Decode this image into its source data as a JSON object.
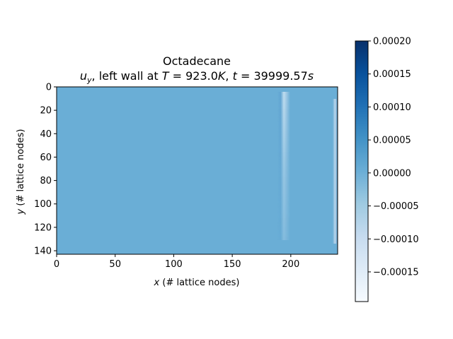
{
  "chart_data": {
    "type": "heatmap",
    "title": "Octadecane",
    "subtitle": {
      "var_base": "u",
      "var_sub": "y",
      "mid": ", left wall at ",
      "T_sym": "T",
      "T_eq": " = 923.0",
      "T_unit": "K",
      "sep": ", ",
      "t_sym": "t",
      "t_eq": " = 39999.57",
      "t_unit": "s"
    },
    "xlabel": {
      "var": "x",
      "rest": " (# lattice nodes)"
    },
    "ylabel": {
      "var": "y",
      "rest": " (# lattice nodes)"
    },
    "xlim": [
      0,
      240
    ],
    "ylim": [
      0,
      143
    ],
    "y_inverted": true,
    "x_ticks": [
      "0",
      "50",
      "100",
      "150",
      "200"
    ],
    "y_ticks": [
      "0",
      "20",
      "40",
      "60",
      "80",
      "100",
      "120",
      "140"
    ],
    "colormap": "Blues",
    "colorbar": {
      "vmin": -0.000195,
      "vmax": 0.0002,
      "ticks": [
        "0.00020",
        "0.00015",
        "0.00010",
        "0.00005",
        "0.00000",
        "−0.00005",
        "−0.00010",
        "−0.00015"
      ]
    },
    "field_summary": {
      "background_value": 0.0,
      "interface_x_range": [
        190,
        208
      ],
      "interface_y_range": [
        12,
        130
      ],
      "right_edge_x": 238,
      "max_value": 0.0002,
      "min_value": -0.000195
    }
  }
}
